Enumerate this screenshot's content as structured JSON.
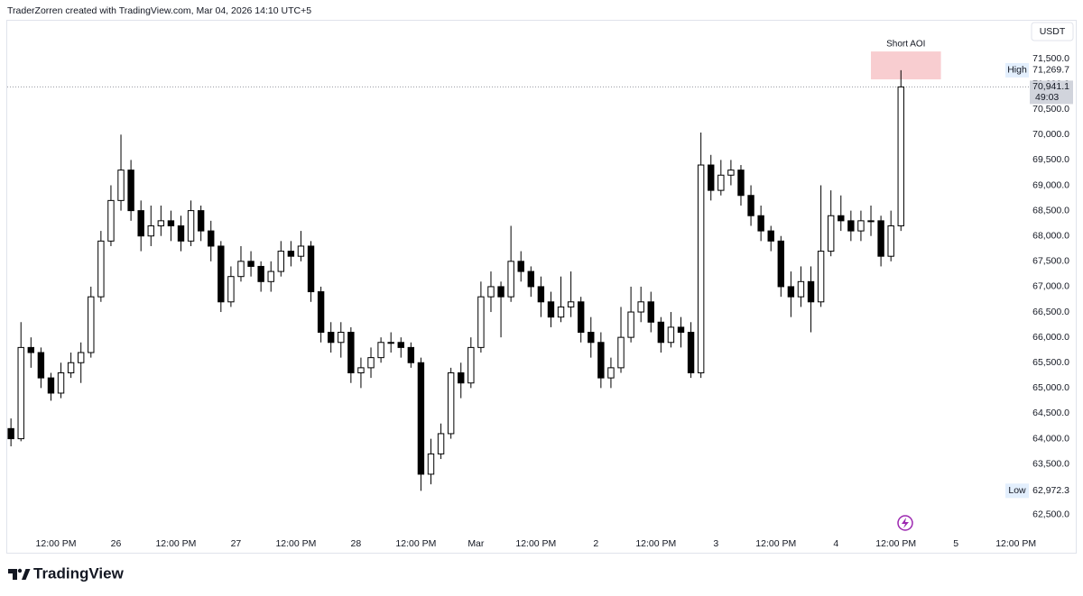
{
  "header": "TraderZorren created with TradingView.com, Mar 04, 2026 14:10 UTC+5",
  "footer": "TradingView",
  "chart_data": {
    "type": "candlestick",
    "currency": "USDT",
    "up_color": "#ffffff",
    "down_color": "#000000",
    "wick_color": "#000000",
    "grid": false,
    "ylim": [
      62160,
      72300
    ],
    "yticks": [
      {
        "value": 62500,
        "label": "62,500.0"
      },
      {
        "value": 63000,
        "label": "63,000.0"
      },
      {
        "value": 63500,
        "label": "63,500.0"
      },
      {
        "value": 64000,
        "label": "64,000.0"
      },
      {
        "value": 64500,
        "label": "64,500.0"
      },
      {
        "value": 65000,
        "label": "65,000.0"
      },
      {
        "value": 65500,
        "label": "65,500.0"
      },
      {
        "value": 66000,
        "label": "66,000.0"
      },
      {
        "value": 66500,
        "label": "66,500.0"
      },
      {
        "value": 67000,
        "label": "67,000.0"
      },
      {
        "value": 67500,
        "label": "67,500.0"
      },
      {
        "value": 68000,
        "label": "68,000.0"
      },
      {
        "value": 68500,
        "label": "68,500.0"
      },
      {
        "value": 69000,
        "label": "69,000.0"
      },
      {
        "value": 69500,
        "label": "69,500.0"
      },
      {
        "value": 70000,
        "label": "70,000.0"
      },
      {
        "value": 70500,
        "label": "70,500.0"
      },
      {
        "value": 71000,
        "label": "71,000.0"
      },
      {
        "value": 71500,
        "label": "71,500.0"
      }
    ],
    "categories": [
      null,
      null,
      null,
      null,
      null,
      "12:00 PM",
      null,
      null,
      null,
      null,
      null,
      "26",
      null,
      null,
      null,
      null,
      null,
      "12:00 PM",
      null,
      null,
      null,
      null,
      null,
      "27",
      null,
      null,
      null,
      null,
      null,
      "12:00 PM",
      null,
      null,
      null,
      null,
      null,
      "28",
      null,
      null,
      null,
      null,
      null,
      "12:00 PM",
      null,
      null,
      null,
      null,
      null,
      "Mar",
      null,
      null,
      null,
      null,
      null,
      "12:00 PM",
      null,
      null,
      null,
      null,
      null,
      "2",
      null,
      null,
      null,
      null,
      null,
      "12:00 PM",
      null,
      null,
      null,
      null,
      null,
      "3",
      null,
      null,
      null,
      null,
      null,
      "12:00 PM",
      null,
      null,
      null,
      null,
      null,
      "4",
      null,
      null,
      null,
      null,
      null,
      "12:00 PM",
      null,
      null,
      null,
      null,
      null,
      "5",
      null,
      null,
      null,
      null,
      null,
      "12:00 PM"
    ],
    "open": [
      64200,
      64000,
      65800,
      65700,
      65200,
      64900,
      65300,
      65500,
      65700,
      66800,
      67900,
      68700,
      69300,
      68500,
      68000,
      68200,
      68300,
      68200,
      67900,
      68500,
      68100,
      67800,
      66700,
      67200,
      67500,
      67400,
      67100,
      67300,
      67700,
      67600,
      67800,
      66900,
      66100,
      65900,
      66100,
      65300,
      65400,
      65600,
      65900,
      65900,
      65800,
      65500,
      63300,
      63700,
      64100,
      65300,
      65100,
      65800,
      66800,
      67000,
      66800,
      67500,
      67300,
      67000,
      66700,
      66400,
      66600,
      66700,
      66100,
      65900,
      65200,
      65400,
      66000,
      66500,
      66700,
      66300,
      65900,
      66200,
      66100,
      65300,
      69400,
      68900,
      69200,
      69300,
      68800,
      68400,
      68100,
      67900,
      67000,
      66800,
      67100,
      66700,
      67700,
      68400,
      68300,
      68100,
      68300,
      68300,
      67600,
      68200,
      null,
      null,
      null,
      null,
      null,
      null,
      null,
      null,
      null,
      null,
      null,
      null
    ],
    "high": [
      64400,
      66300,
      66000,
      65800,
      65300,
      65500,
      65700,
      65900,
      67000,
      68100,
      69000,
      70000,
      69500,
      68700,
      68600,
      68600,
      68500,
      68400,
      68700,
      68600,
      68300,
      67900,
      67400,
      67800,
      67700,
      67500,
      67500,
      67900,
      67900,
      68100,
      67900,
      67000,
      66300,
      66300,
      66200,
      65600,
      65800,
      66000,
      66100,
      66000,
      65900,
      65600,
      64000,
      64300,
      65400,
      65500,
      66000,
      67100,
      67300,
      67100,
      68200,
      67700,
      67400,
      67200,
      66900,
      67200,
      67300,
      66800,
      66400,
      66100,
      65600,
      66600,
      67000,
      67000,
      66900,
      66400,
      66500,
      66400,
      66300,
      70040,
      69600,
      69500,
      69500,
      69400,
      69000,
      68600,
      68200,
      68000,
      67300,
      67400,
      67400,
      69000,
      68900,
      68800,
      68500,
      68500,
      68600,
      68400,
      68500,
      71269.7,
      null,
      null,
      null,
      null,
      null,
      null,
      null,
      null,
      null,
      null,
      null,
      null
    ],
    "low": [
      63850,
      63950,
      65400,
      65000,
      64750,
      64800,
      65200,
      65100,
      65600,
      66700,
      67800,
      68500,
      68300,
      67700,
      67800,
      68000,
      67900,
      67700,
      67800,
      67900,
      67500,
      66500,
      66600,
      67100,
      67200,
      66900,
      66900,
      67200,
      67400,
      67500,
      66700,
      65900,
      65700,
      65600,
      65100,
      65000,
      65200,
      65500,
      65700,
      65600,
      65400,
      62972.3,
      63100,
      63600,
      64000,
      64800,
      65000,
      65700,
      66500,
      66000,
      66700,
      67100,
      66800,
      66400,
      66200,
      66300,
      66400,
      65900,
      65600,
      65000,
      65000,
      65300,
      65900,
      66300,
      66100,
      65700,
      65800,
      65800,
      65200,
      65200,
      68700,
      68800,
      69000,
      68600,
      68200,
      67900,
      67700,
      66800,
      66400,
      66600,
      66100,
      66600,
      67600,
      68100,
      67900,
      67900,
      68000,
      67400,
      67500,
      68100,
      null,
      null,
      null,
      null,
      null,
      null,
      null,
      null,
      null,
      null,
      null,
      null
    ],
    "close": [
      64000,
      65800,
      65700,
      65200,
      64900,
      65300,
      65500,
      65700,
      66800,
      67900,
      68700,
      69300,
      68500,
      68000,
      68200,
      68300,
      68200,
      67900,
      68500,
      68100,
      67800,
      66700,
      67200,
      67500,
      67400,
      67100,
      67300,
      67700,
      67600,
      67800,
      66900,
      66100,
      65900,
      66100,
      65300,
      65400,
      65600,
      65900,
      65900,
      65800,
      65500,
      63300,
      63700,
      64100,
      65300,
      65100,
      65800,
      66800,
      67000,
      66800,
      67500,
      67300,
      67000,
      66700,
      66400,
      66600,
      66700,
      66100,
      65900,
      65200,
      65400,
      66000,
      66500,
      66700,
      66300,
      65900,
      66200,
      66100,
      65300,
      69400,
      68900,
      69200,
      69300,
      68800,
      68400,
      68100,
      67900,
      67000,
      66800,
      67100,
      66700,
      67700,
      68400,
      68300,
      68100,
      68300,
      68300,
      67600,
      68200,
      70941.1,
      null,
      null,
      null,
      null,
      null,
      null,
      null,
      null,
      null,
      null,
      null,
      null
    ],
    "high_marker": {
      "text": "High",
      "value": 71269.7,
      "label": "71,269.7"
    },
    "low_marker": {
      "text": "Low",
      "value": 62972.3,
      "label": "62,972.3"
    },
    "last_price": {
      "value": 70941.1,
      "label": "70,941.1",
      "countdown": "49:03"
    },
    "annotations": [
      {
        "text": "Short AOI",
        "y_range": [
          71090,
          71640
        ],
        "index_range": [
          86,
          93
        ],
        "color": "#f8cdd0"
      }
    ]
  }
}
